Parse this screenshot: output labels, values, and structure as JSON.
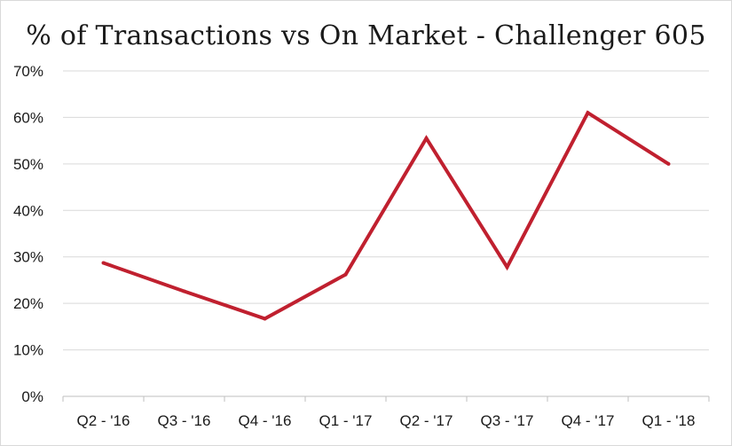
{
  "chart_data": {
    "type": "line",
    "title": "% of Transactions vs On Market - Challenger 605",
    "xlabel": "",
    "ylabel": "",
    "categories": [
      "Q2 - '16",
      "Q3 - '16",
      "Q4 - '16",
      "Q1 - '17",
      "Q2 - '17",
      "Q3 - '17",
      "Q4 - '17",
      "Q1 - '18"
    ],
    "series": [
      {
        "values": [
          28.7,
          22.6,
          16.7,
          26.2,
          55.5,
          27.8,
          61.0,
          50.0
        ]
      }
    ],
    "ylim": [
      0,
      70
    ],
    "yticks": [
      0,
      10,
      20,
      30,
      40,
      50,
      60,
      70
    ],
    "ytick_labels": [
      "0%",
      "10%",
      "20%",
      "30%",
      "40%",
      "50%",
      "60%",
      "70%"
    ],
    "grid": true,
    "legend": "none",
    "colors": {
      "series": "#c0202f",
      "grid": "#d9d9d9",
      "text": "#1a1a1a"
    }
  }
}
